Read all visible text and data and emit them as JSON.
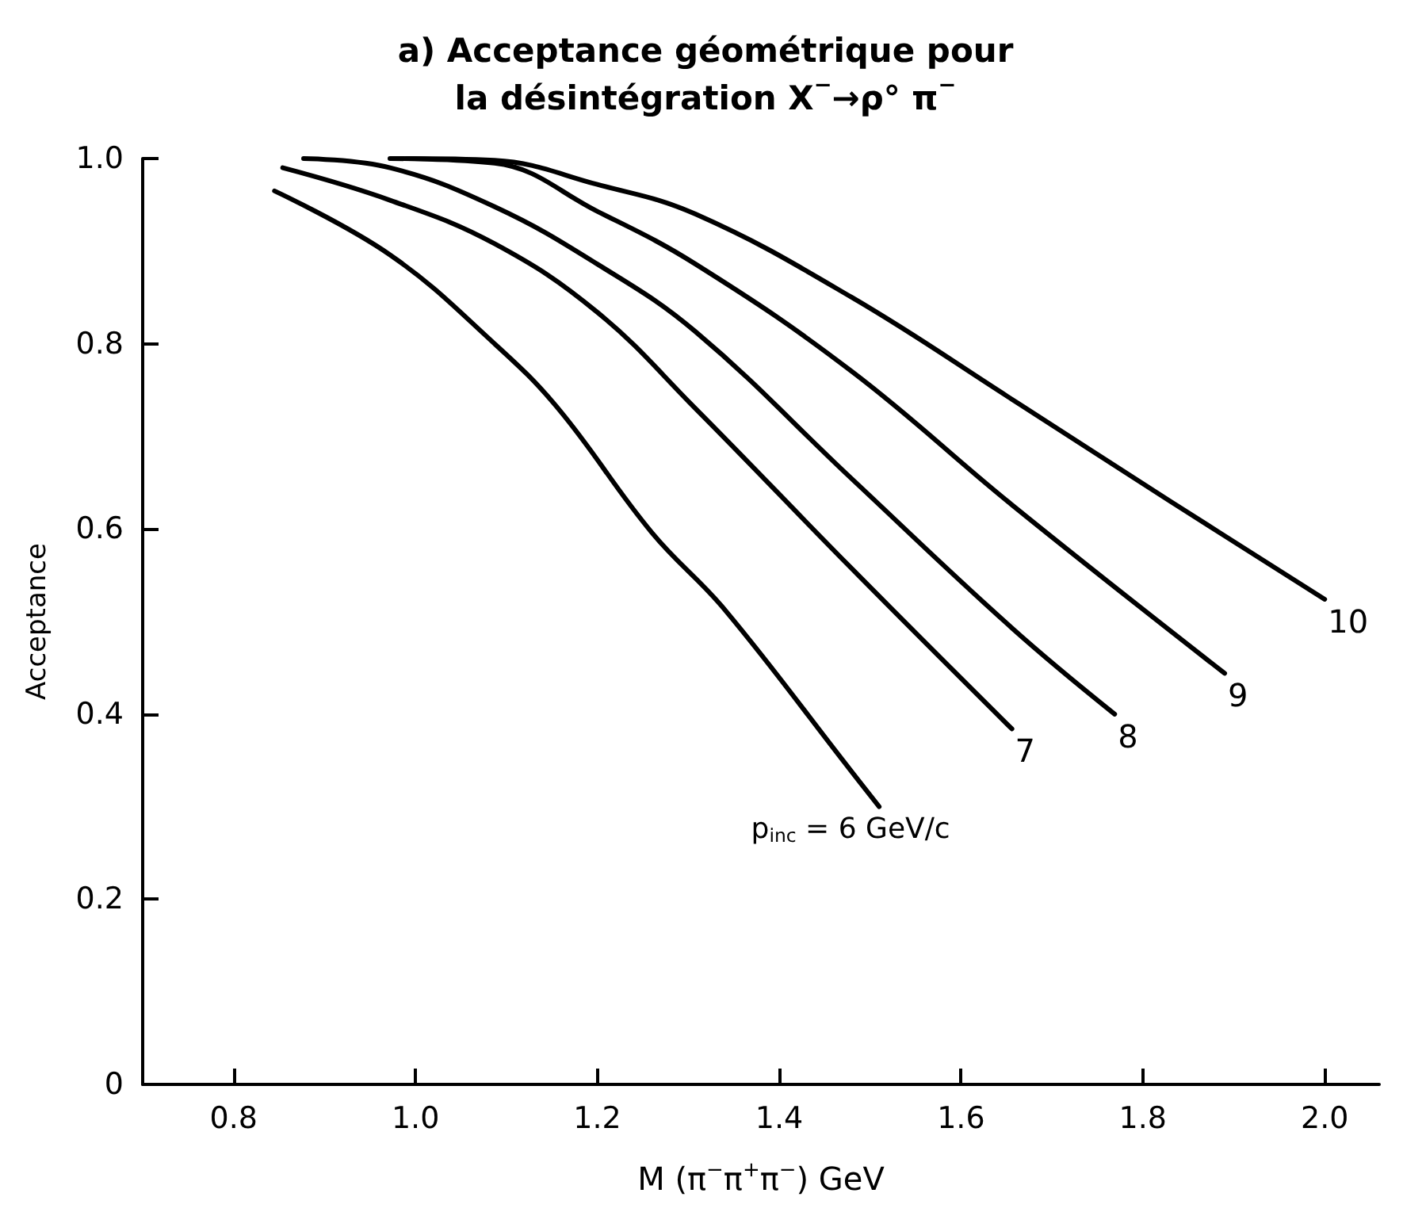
{
  "chart_data": {
    "type": "line",
    "title": "a) Acceptance géométrique pour\nla désintégration X$^{−}$→ρ° π$^{−}$",
    "xlabel": "M (π$^{−}$π$^{+}$π$^{−}$) GeV",
    "ylabel": "Acceptance",
    "xlim": [
      0.7,
      2.06
    ],
    "ylim": [
      0,
      1.0
    ],
    "xticks": [
      0.8,
      {
        "value": 1.0,
        "label": "1.0"
      },
      1.2,
      1.4,
      1.6,
      1.8,
      {
        "value": 2.0,
        "label": "2.0"
      }
    ],
    "yticks": [
      0,
      0.2,
      0.4,
      0.6,
      0.8,
      {
        "value": 1.0,
        "label": "1.0"
      }
    ],
    "grid": false,
    "marker": "none",
    "line_style": "solid",
    "series": [
      {
        "name": "p$_{inc}$ = 6 GeV/c",
        "color": "#000000",
        "x": [
          0.845,
          0.972,
          1.087,
          1.157,
          1.26,
          1.34,
          1.478,
          1.51
        ],
        "values": [
          0.965,
          0.896,
          0.8,
          0.73,
          0.596,
          0.513,
          0.34,
          0.3
        ]
      },
      {
        "name": "7",
        "color": "#000000",
        "x": [
          0.854,
          0.972,
          1.087,
          1.2,
          1.308,
          1.48,
          1.656
        ],
        "values": [
          0.99,
          0.955,
          0.908,
          0.834,
          0.73,
          0.557,
          0.384
        ]
      },
      {
        "name": "8",
        "color": "#000000",
        "x": [
          0.877,
          0.972,
          1.087,
          1.2,
          1.308,
          1.48,
          1.656,
          1.769
        ],
        "values": [
          1.0,
          0.99,
          0.948,
          0.886,
          0.813,
          0.654,
          0.493,
          0.4
        ]
      },
      {
        "name": "9",
        "color": "#000000",
        "x": [
          0.972,
          1.087,
          1.2,
          1.308,
          1.48,
          1.656,
          1.89
        ],
        "values": [
          1.0,
          0.995,
          0.943,
          0.886,
          0.77,
          0.626,
          0.444
        ]
      },
      {
        "name": "10",
        "color": "#000000",
        "x": [
          0.99,
          1.087,
          1.2,
          1.308,
          1.48,
          1.656,
          1.83,
          2.0
        ],
        "values": [
          1.0,
          0.998,
          0.972,
          0.94,
          0.85,
          0.74,
          0.63,
          0.524
        ]
      }
    ]
  }
}
